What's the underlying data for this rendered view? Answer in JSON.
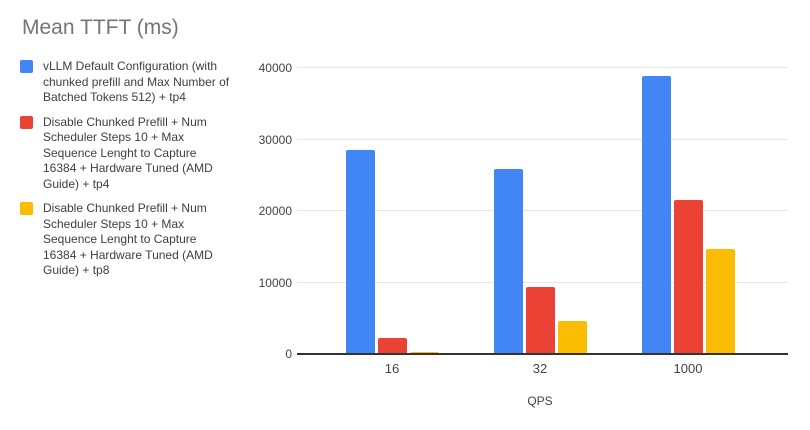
{
  "chart_data": {
    "type": "bar",
    "title": "Mean TTFT (ms)",
    "xlabel": "QPS",
    "ylabel": "",
    "categories": [
      "16",
      "32",
      "1000"
    ],
    "series": [
      {
        "name": "vLLM Default Configuration (with chunked prefill and Max Number of Batched Tokens 512) + tp4",
        "color": "#4285F4",
        "values": [
          28500,
          25900,
          38900
        ]
      },
      {
        "name": "Disable Chunked Prefill + Num Scheduler Steps 10 + Max Sequence Lenght to Capture 16384 + Hardware Tuned (AMD Guide) + tp4",
        "color": "#EA4335",
        "values": [
          2200,
          9400,
          21500
        ]
      },
      {
        "name": "Disable Chunked Prefill + Num Scheduler Steps 10 + Max Sequence Lenght to Capture 16384 + Hardware Tuned (AMD Guide) + tp8",
        "color": "#FBBC04",
        "values": [
          250,
          4650,
          14650
        ]
      }
    ],
    "ylim": [
      0,
      40000
    ],
    "yticks": [
      0,
      10000,
      20000,
      30000,
      40000
    ],
    "grid": true,
    "legend_position": "left"
  },
  "ui_colors": {
    "background": "#ffffff",
    "title_text": "#757575",
    "legend_text": "#3c4043",
    "axis_text": "#424242",
    "gridline": "#e6e6e6",
    "axis_line": "#333333"
  }
}
